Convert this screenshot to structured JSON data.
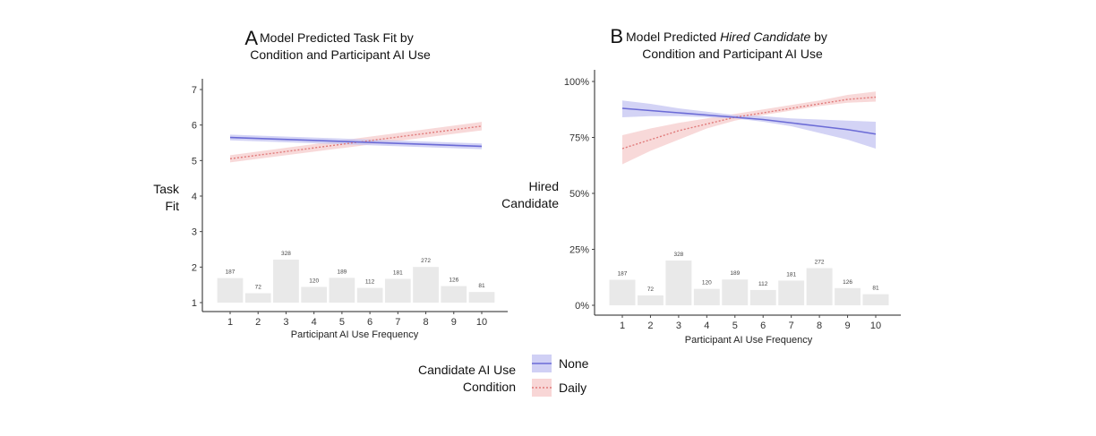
{
  "chart_data": [
    {
      "type": "line",
      "panel_letter": "A",
      "title_line1": "Model Predicted Task Fit by",
      "title_line2": "Condition and Participant AI Use",
      "ylabel_line1": "Task",
      "ylabel_line2": "Fit",
      "xlabel": "Participant AI Use Frequency",
      "x_ticks": [
        "1",
        "2",
        "3",
        "4",
        "5",
        "6",
        "7",
        "8",
        "9",
        "10"
      ],
      "y_ticks": [
        "1",
        "2",
        "3",
        "4",
        "5",
        "6",
        "7"
      ],
      "ylim": [
        1,
        7
      ],
      "series": [
        {
          "name": "None",
          "x": [
            1,
            10
          ],
          "y": [
            5.65,
            5.4
          ],
          "ci_low": [
            5.57,
            5.32
          ],
          "ci_high": [
            5.73,
            5.48
          ]
        },
        {
          "name": "Daily",
          "x": [
            1,
            10
          ],
          "y": [
            5.05,
            5.97
          ],
          "ci_low": [
            4.95,
            5.85
          ],
          "ci_high": [
            5.15,
            6.09
          ]
        }
      ],
      "histogram": {
        "counts": [
          187,
          72,
          328,
          120,
          189,
          112,
          181,
          272,
          126,
          81
        ],
        "labels": [
          "187",
          "72",
          "328",
          "120",
          "189",
          "112",
          "181",
          "272",
          "126",
          "81"
        ]
      }
    },
    {
      "type": "line",
      "panel_letter": "B",
      "title_line1_prefix": "Model Predicted ",
      "title_line1_italic": "Hired Candidate",
      "title_line1_suffix": " by",
      "title_line2": "Condition and Participant AI Use",
      "ylabel_line1": "Hired",
      "ylabel_line2": "Candidate",
      "xlabel": "Participant AI Use Frequency",
      "x_ticks": [
        "1",
        "2",
        "3",
        "4",
        "5",
        "6",
        "7",
        "8",
        "9",
        "10"
      ],
      "y_ticks": [
        "0%",
        "25%",
        "50%",
        "75%",
        "100%"
      ],
      "ylim": [
        0,
        1
      ],
      "series": [
        {
          "name": "None",
          "x": [
            1,
            2,
            3,
            4,
            5,
            6,
            7,
            8,
            9,
            10
          ],
          "y": [
            0.88,
            0.87,
            0.86,
            0.85,
            0.84,
            0.83,
            0.815,
            0.8,
            0.785,
            0.765
          ],
          "ci_low": [
            0.84,
            0.845,
            0.845,
            0.84,
            0.835,
            0.82,
            0.8,
            0.77,
            0.74,
            0.7
          ],
          "ci_high": [
            0.915,
            0.9,
            0.88,
            0.865,
            0.85,
            0.845,
            0.835,
            0.83,
            0.825,
            0.82
          ]
        },
        {
          "name": "Daily",
          "x": [
            1,
            2,
            3,
            4,
            5,
            6,
            7,
            8,
            9,
            10
          ],
          "y": [
            0.7,
            0.74,
            0.78,
            0.81,
            0.84,
            0.86,
            0.88,
            0.9,
            0.92,
            0.93
          ],
          "ci_low": [
            0.63,
            0.69,
            0.74,
            0.79,
            0.825,
            0.85,
            0.87,
            0.89,
            0.905,
            0.91
          ],
          "ci_high": [
            0.76,
            0.79,
            0.815,
            0.835,
            0.855,
            0.875,
            0.895,
            0.915,
            0.94,
            0.955
          ]
        }
      ],
      "histogram": {
        "counts": [
          187,
          72,
          328,
          120,
          189,
          112,
          181,
          272,
          126,
          81
        ],
        "labels": [
          "187",
          "72",
          "328",
          "120",
          "189",
          "112",
          "181",
          "272",
          "126",
          "81"
        ]
      }
    }
  ],
  "legend": {
    "title_line1": "Candidate AI Use",
    "title_line2": "Condition",
    "items": [
      {
        "label": "None",
        "color": "#6b6bd6",
        "fill": "#c4c4f2",
        "dash": false
      },
      {
        "label": "Daily",
        "color": "#e07a7a",
        "fill": "#f6cccc",
        "dash": true
      }
    ]
  },
  "colors": {
    "none_line": "#6b6bd6",
    "none_ribbon": "#c4c4f2",
    "daily_line": "#e07a7a",
    "daily_ribbon": "#f6cccc",
    "histogram": "#e9e9e9"
  }
}
